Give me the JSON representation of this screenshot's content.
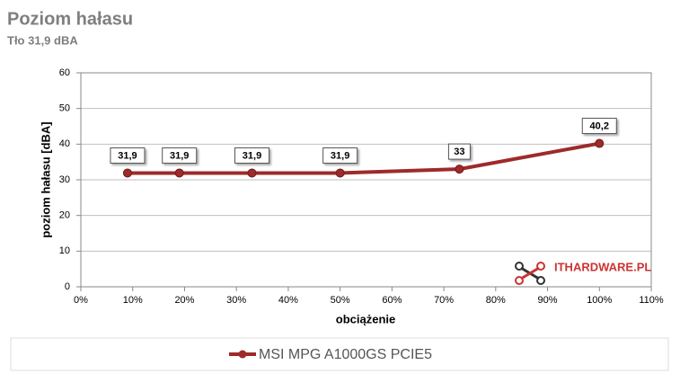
{
  "chart_data": {
    "type": "line",
    "title": "Poziom hałasu",
    "subtitle": "Tło 31,9 dBA",
    "x_label": "obciążenie",
    "y_label": "poziom hałasu [dBA]",
    "watermark": "ITHARDWARE.PL",
    "x": [
      9,
      19,
      33,
      50,
      73,
      100
    ],
    "series": [
      {
        "name": "MSI MPG A1000GS PCIE5",
        "color": "#9e2a2a",
        "values": [
          31.9,
          31.9,
          31.9,
          31.9,
          33,
          40.2
        ],
        "value_labels": [
          "31,9",
          "31,9",
          "31,9",
          "31,9",
          "33",
          "40,2"
        ]
      }
    ],
    "xlim": [
      0,
      110
    ],
    "xticks": [
      {
        "value": 0,
        "label": "0%"
      },
      {
        "value": 10,
        "label": "10%"
      },
      {
        "value": 20,
        "label": "20%"
      },
      {
        "value": 30,
        "label": "30%"
      },
      {
        "value": 40,
        "label": "40%"
      },
      {
        "value": 50,
        "label": "50%"
      },
      {
        "value": 60,
        "label": "60%"
      },
      {
        "value": 70,
        "label": "70%"
      },
      {
        "value": 80,
        "label": "80%"
      },
      {
        "value": 90,
        "label": "90%"
      },
      {
        "value": 100,
        "label": "100%"
      },
      {
        "value": 110,
        "label": "110%"
      }
    ],
    "ylim": [
      0,
      60
    ],
    "yticks": [
      0,
      10,
      20,
      30,
      40,
      50,
      60
    ],
    "grid": true
  }
}
